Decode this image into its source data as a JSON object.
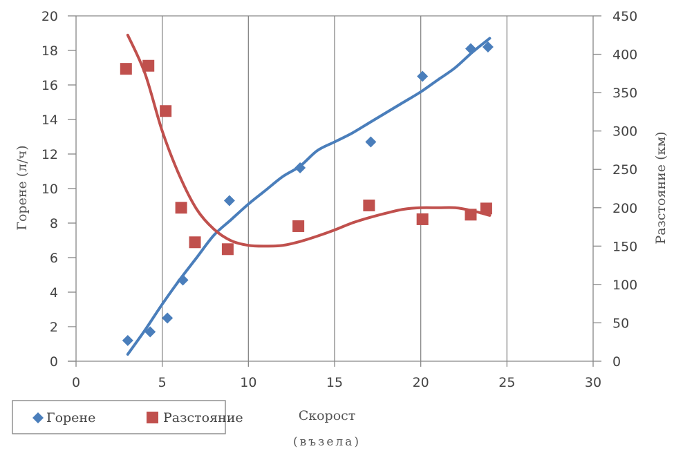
{
  "chart_data": {
    "type": "scatter",
    "title": "",
    "xlabel": "Скорост",
    "xlabel_line2": "(възела)",
    "ylabel_left": "Горене (л/ч)",
    "ylabel_right": "Разстояние (км)",
    "x_range": [
      0,
      30
    ],
    "x_ticks": [
      "0",
      "5",
      "10",
      "15",
      "20",
      "25",
      "30"
    ],
    "y_left_range": [
      0,
      20
    ],
    "y_left_ticks": [
      "0",
      "2",
      "4",
      "6",
      "8",
      "10",
      "12",
      "14",
      "16",
      "18",
      "20"
    ],
    "y_right_range": [
      0,
      450
    ],
    "y_right_ticks": [
      "0",
      "50",
      "100",
      "150",
      "200",
      "250",
      "300",
      "350",
      "400",
      "450"
    ],
    "grid": "vertical",
    "legend_position": "bottom-left",
    "series": [
      {
        "name": "Горене",
        "axis": "left",
        "marker": "diamond",
        "color": "#4a7ebb",
        "points": [
          [
            3.0,
            1.2
          ],
          [
            4.3,
            1.7
          ],
          [
            5.3,
            2.5
          ],
          [
            6.2,
            4.7
          ],
          [
            8.9,
            9.3
          ],
          [
            13.0,
            11.2
          ],
          [
            17.1,
            12.7
          ],
          [
            20.1,
            16.5
          ],
          [
            22.9,
            18.1
          ],
          [
            23.9,
            18.2
          ]
        ],
        "trendline": [
          [
            3.0,
            0.4
          ],
          [
            4.0,
            1.8
          ],
          [
            5.0,
            3.3
          ],
          [
            6.0,
            4.7
          ],
          [
            7.0,
            6.0
          ],
          [
            8.0,
            7.3
          ],
          [
            9.0,
            8.2
          ],
          [
            10.0,
            9.1
          ],
          [
            11.0,
            9.9
          ],
          [
            12.0,
            10.7
          ],
          [
            13.0,
            11.3
          ],
          [
            14.0,
            12.2
          ],
          [
            15.0,
            12.7
          ],
          [
            16.0,
            13.2
          ],
          [
            17.0,
            13.8
          ],
          [
            18.0,
            14.4
          ],
          [
            19.0,
            15.0
          ],
          [
            20.0,
            15.6
          ],
          [
            21.0,
            16.3
          ],
          [
            22.0,
            17.0
          ],
          [
            23.0,
            17.9
          ],
          [
            24.0,
            18.7
          ]
        ]
      },
      {
        "name": "Разстояние",
        "axis": "right",
        "marker": "square",
        "color": "#c0504d",
        "points": [
          [
            2.9,
            381
          ],
          [
            4.2,
            385
          ],
          [
            5.2,
            326
          ],
          [
            6.1,
            200
          ],
          [
            6.9,
            155
          ],
          [
            8.8,
            146
          ],
          [
            12.9,
            176
          ],
          [
            17.0,
            203
          ],
          [
            20.1,
            185
          ],
          [
            22.9,
            191
          ],
          [
            23.8,
            199
          ]
        ],
        "trendline": [
          [
            3.0,
            425
          ],
          [
            4.0,
            375
          ],
          [
            5.0,
            300
          ],
          [
            6.0,
            242
          ],
          [
            7.0,
            198
          ],
          [
            8.0,
            172
          ],
          [
            9.0,
            157
          ],
          [
            10.0,
            151
          ],
          [
            11.0,
            150
          ],
          [
            12.0,
            151
          ],
          [
            13.0,
            156
          ],
          [
            14.0,
            163
          ],
          [
            15.0,
            171
          ],
          [
            16.0,
            180
          ],
          [
            17.0,
            187
          ],
          [
            18.0,
            193
          ],
          [
            19.0,
            198
          ],
          [
            20.0,
            200
          ],
          [
            21.0,
            200
          ],
          [
            22.0,
            200
          ],
          [
            23.0,
            196
          ],
          [
            24.0,
            190
          ]
        ]
      }
    ]
  }
}
